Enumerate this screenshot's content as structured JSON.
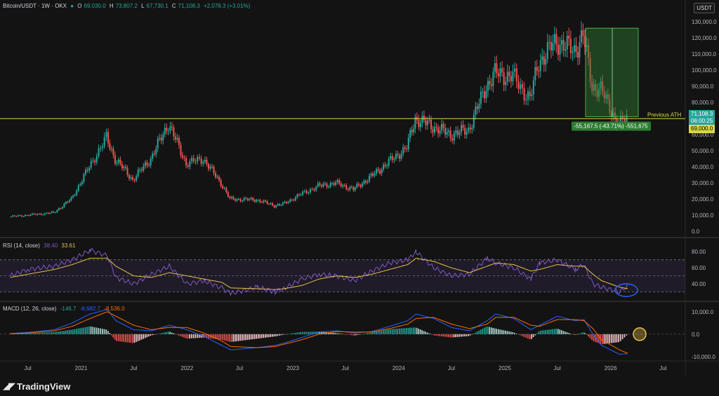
{
  "header": {
    "symbol": "Bitcoin/USDT · 1W · OKX",
    "o_label": "O",
    "o_value": "69,030.0",
    "h_label": "H",
    "h_value": "73,807.2",
    "l_label": "L",
    "l_value": "67,730.1",
    "c_label": "C",
    "c_value": "71,108.3",
    "change": "+2,078.3 (+3.01%)"
  },
  "currency_badge": "USDT",
  "price_tags": {
    "last": "71,108.3",
    "countdown": "06:00:25",
    "level": "69,000.0"
  },
  "annotations": {
    "previous_ath": "Previous ATH",
    "measure": "-55,167.5 (-43.71%) -551,675"
  },
  "rsi_legend": {
    "name": "RSI (14, close)",
    "v1": "38.40",
    "v2": "33.61"
  },
  "macd_legend": {
    "name": "MACD (12, 26, close)",
    "v1": "-146.7",
    "v2": "-8,682.7",
    "v3": "-8,536.0"
  },
  "brand": "TradingView",
  "colors": {
    "up": "#26a69a",
    "down": "#ef5350",
    "ath_line": "#d8d84a",
    "rsi_line": "#7e57c2",
    "rsi_ma": "#e6c04a",
    "macd_line": "#2962ff",
    "signal_line": "#ff6d00",
    "measure_box": "#2e7d32"
  },
  "chart_data": [
    {
      "type": "candlestick",
      "title": "Bitcoin/USDT · 1W · OKX",
      "ylim": [
        0,
        130000
      ],
      "y_ticks": [
        "130,000.0",
        "120,000.0",
        "110,000.0",
        "100,000.0",
        "90,000.0",
        "80,000.0",
        "70,000.0",
        "60,000.0",
        "50,000.0",
        "40,000.0",
        "30,000.0",
        "20,000.0",
        "10,000.0",
        "0.0"
      ],
      "x_ticks": [
        "Jul",
        "2021",
        "Jul",
        "2022",
        "Jul",
        "2023",
        "Jul",
        "2024",
        "Jul",
        "2025",
        "Jul",
        "2026",
        "Jul"
      ],
      "x": [
        "2020-05",
        "2020-07",
        "2020-10",
        "2020-12",
        "2021-02",
        "2021-04",
        "2021-05",
        "2021-07",
        "2021-09",
        "2021-11",
        "2022-01",
        "2022-03",
        "2022-05",
        "2022-06",
        "2022-09",
        "2022-11",
        "2022-12",
        "2023-02",
        "2023-04",
        "2023-06",
        "2023-08",
        "2023-10",
        "2023-12",
        "2024-02",
        "2024-03",
        "2024-05",
        "2024-07",
        "2024-09",
        "2024-11",
        "2024-12",
        "2025-02",
        "2025-04",
        "2025-05",
        "2025-07",
        "2025-09",
        "2025-10",
        "2025-11",
        "2025-12",
        "2026-02",
        "2026-03"
      ],
      "close": [
        9000,
        10000,
        11500,
        20000,
        40000,
        58000,
        45000,
        32000,
        45000,
        67000,
        42000,
        45000,
        30000,
        20000,
        19500,
        16000,
        16800,
        23000,
        28000,
        30000,
        26000,
        34000,
        43000,
        52000,
        70000,
        65000,
        60000,
        63000,
        90000,
        98000,
        96000,
        82000,
        105000,
        118000,
        112000,
        122000,
        90000,
        88000,
        66000,
        71108
      ],
      "reference_line": {
        "label": "Previous ATH",
        "value": 69000
      },
      "measure": {
        "label": "-55,167.5 (-43.71%) -551,675",
        "from": 126000,
        "to": 71108
      }
    },
    {
      "type": "line",
      "title": "RSI (14, close)",
      "ylim": [
        20,
        95
      ],
      "y_ticks": [
        "80.00",
        "60.00",
        "40.00"
      ],
      "bands": [
        70,
        50,
        30
      ],
      "series": [
        {
          "name": "RSI",
          "values": [
            50,
            58,
            62,
            70,
            82,
            75,
            48,
            40,
            52,
            62,
            40,
            44,
            35,
            28,
            36,
            30,
            34,
            46,
            52,
            50,
            44,
            56,
            66,
            70,
            80,
            60,
            50,
            52,
            72,
            66,
            60,
            46,
            66,
            70,
            58,
            64,
            40,
            36,
            30,
            38
          ]
        },
        {
          "name": "MA",
          "values": [
            48,
            52,
            58,
            64,
            72,
            72,
            62,
            50,
            48,
            54,
            50,
            46,
            42,
            35,
            34,
            33,
            34,
            38,
            46,
            50,
            48,
            52,
            58,
            64,
            72,
            68,
            60,
            54,
            62,
            66,
            64,
            56,
            58,
            64,
            62,
            62,
            52,
            44,
            36,
            34
          ]
        }
      ]
    },
    {
      "type": "bar+line",
      "title": "MACD (12, 26, close)",
      "ylim": [
        -11000,
        14000
      ],
      "y_ticks": [
        "10,000.0",
        "0.0",
        "-10,000.0"
      ],
      "series": [
        {
          "name": "Histogram",
          "values": [
            200,
            400,
            900,
            2000,
            3500,
            2000,
            -3000,
            -4000,
            -500,
            1200,
            -2000,
            -1500,
            -2500,
            -3500,
            -2000,
            -1000,
            -200,
            1000,
            1200,
            500,
            -600,
            800,
            2200,
            2800,
            3000,
            -500,
            -1500,
            -800,
            3500,
            2500,
            800,
            -2500,
            1500,
            2500,
            -500,
            1000,
            -3000,
            -4500,
            -3500,
            -146.7
          ]
        },
        {
          "name": "MACD",
          "values": [
            300,
            800,
            2000,
            5000,
            9000,
            11000,
            6000,
            2000,
            1500,
            4000,
            2000,
            -1000,
            -5000,
            -7000,
            -6000,
            -5000,
            -4000,
            -1500,
            1000,
            1500,
            500,
            1200,
            3500,
            6000,
            9000,
            7000,
            3000,
            1500,
            6000,
            9000,
            7000,
            2000,
            4000,
            8000,
            6000,
            6500,
            0,
            -5000,
            -9000,
            -8682.7
          ]
        },
        {
          "name": "Signal",
          "values": [
            200,
            500,
            1500,
            3500,
            7000,
            10000,
            8000,
            4000,
            2000,
            3000,
            3000,
            500,
            -3000,
            -5500,
            -6000,
            -5500,
            -4500,
            -2500,
            0,
            1200,
            900,
            1000,
            2500,
            4500,
            7000,
            7500,
            4500,
            2500,
            4500,
            7500,
            7500,
            4000,
            3500,
            6500,
            6500,
            6000,
            2500,
            -2500,
            -7000,
            -8536
          ]
        }
      ]
    }
  ]
}
